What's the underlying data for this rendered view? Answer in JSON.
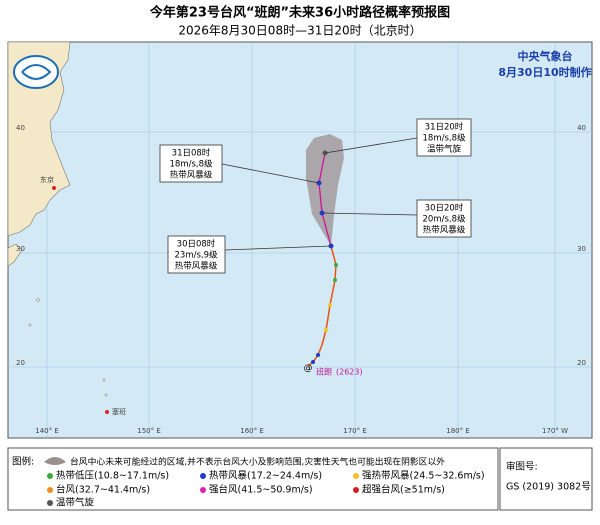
{
  "header": {
    "title": "今年第23号台风“班朗”未来36小时路径概率预报图",
    "subtitle": "2026年8月30日08时—31日20时（北京时）"
  },
  "agency": {
    "name": "中央气象台",
    "issued": "8月30日10时制作"
  },
  "map": {
    "lon_labels": [
      "140° E",
      "150° E",
      "160° E",
      "170° E",
      "180° E",
      "170° W"
    ],
    "lat_labels": [
      "40",
      "30",
      "20"
    ],
    "places": [
      "东京",
      "塞班"
    ],
    "forecasts": [
      {
        "time": "31日20时",
        "wind": "18m/s,8级",
        "category": "温带气旋"
      },
      {
        "time": "31日08时",
        "wind": "18m/s,8级",
        "category": "热带风暴级"
      },
      {
        "time": "30日20时",
        "wind": "20m/s,8级",
        "category": "热带风暴级"
      },
      {
        "time": "30日08时",
        "wind": "23m/s,9级",
        "category": "热带风暴级"
      }
    ],
    "typhoon": {
      "name": "班朗",
      "code": "(2623)"
    }
  },
  "legend": {
    "title": "图例:",
    "note": "台风中心未来可能经过的区域,并不表示台风大小及影响范围,灾害性天气也可能出现在阴影区以外",
    "items": [
      "热带低压(10.8~17.1m/s)",
      "热带风暴(17.2~24.4m/s)",
      "强热带风暴(24.5~32.6m/s)",
      "台风(32.7~41.4m/s)",
      "强台风(41.5~50.9m/s)",
      "超强台风(≥51m/s)",
      "温带气旋"
    ]
  },
  "approval": {
    "label": "审图号:",
    "number": "GS (2019) 3082号"
  }
}
